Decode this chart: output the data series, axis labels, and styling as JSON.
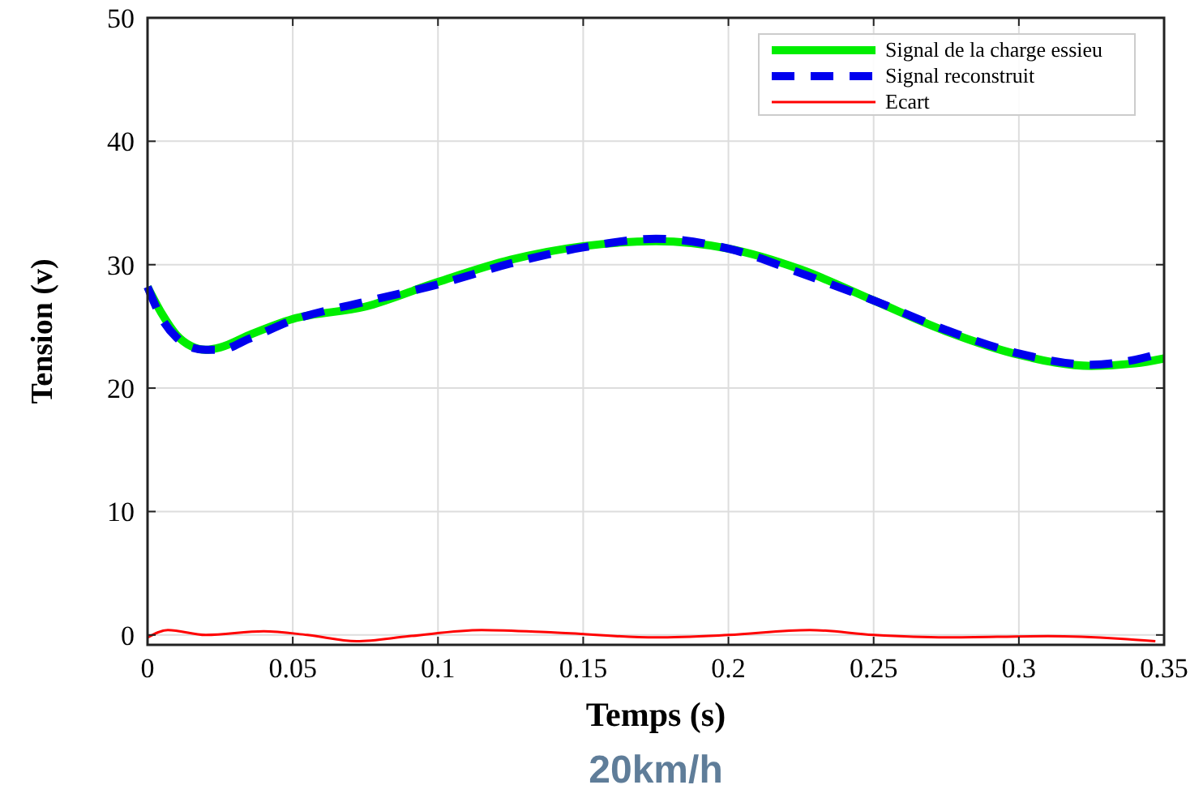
{
  "chart_data": {
    "type": "line",
    "xlabel": "Temps (s)",
    "ylabel": "Tension (v)",
    "annotations": [
      "20km/h"
    ],
    "xlim": [
      0,
      0.35
    ],
    "ylim": [
      -0.8,
      50
    ],
    "xticks": [
      0,
      0.05,
      0.1,
      0.15,
      0.2,
      0.25,
      0.3,
      0.35
    ],
    "yticks": [
      0,
      10,
      20,
      30,
      40,
      50
    ],
    "grid": true,
    "legend": "top right",
    "series": [
      {
        "name": "Signal de la charge essieu",
        "color": "#00ee00",
        "line_style": "solid",
        "x": [
          0,
          0.005,
          0.01,
          0.015,
          0.02,
          0.025,
          0.035,
          0.05,
          0.075,
          0.1,
          0.125,
          0.15,
          0.175,
          0.2,
          0.225,
          0.25,
          0.275,
          0.3,
          0.325,
          0.34,
          0.35
        ],
        "values": [
          28.2,
          26,
          24.3,
          23.4,
          23.1,
          23.3,
          24.3,
          25.6,
          26.6,
          28.6,
          30.4,
          31.5,
          31.9,
          31.3,
          29.6,
          27.1,
          24.6,
          22.7,
          21.8,
          22,
          22.4
        ]
      },
      {
        "name": "Signal reconstruit",
        "color": "#0000ee",
        "line_style": "dashed",
        "x": [
          0,
          0.005,
          0.01,
          0.015,
          0.02,
          0.025,
          0.035,
          0.05,
          0.075,
          0.1,
          0.125,
          0.15,
          0.175,
          0.2,
          0.225,
          0.25,
          0.275,
          0.3,
          0.325,
          0.34,
          0.35
        ],
        "values": [
          28.2,
          25.6,
          24.1,
          23.3,
          23.1,
          23.1,
          24,
          25.5,
          27,
          28.4,
          30.1,
          31.4,
          32.1,
          31.3,
          29.3,
          27.1,
          24.7,
          22.8,
          21.9,
          22.3,
          22.9
        ]
      },
      {
        "name": "Ecart",
        "color": "#ff0000",
        "line_style": "solid",
        "x": [
          0,
          0.007,
          0.02,
          0.04,
          0.055,
          0.072,
          0.09,
          0.115,
          0.14,
          0.175,
          0.2,
          0.228,
          0.25,
          0.275,
          0.31,
          0.335,
          0.347
        ],
        "values": [
          -0.2,
          0.4,
          0,
          0.3,
          0,
          -0.5,
          -0.1,
          0.4,
          0.2,
          -0.2,
          0,
          0.4,
          0,
          -0.2,
          -0.1,
          -0.3,
          -0.5
        ]
      }
    ]
  }
}
